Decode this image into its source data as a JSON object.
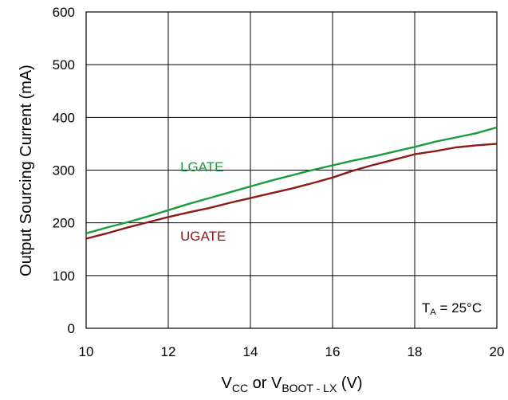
{
  "chart_data": {
    "type": "line",
    "title": "",
    "xlabel": {
      "main": "V",
      "sub1": "CC",
      "mid": " or V",
      "sub2": "BOOT - LX",
      "tail": " (V)"
    },
    "ylabel": "Output Sourcing Current (mA)",
    "xlim": [
      10,
      20
    ],
    "ylim": [
      0,
      600
    ],
    "xticks": [
      "10",
      "12",
      "14",
      "16",
      "18",
      "20"
    ],
    "yticks": [
      "0",
      "100",
      "200",
      "300",
      "400",
      "500",
      "600"
    ],
    "grid": true,
    "annotation": {
      "prefix": "T",
      "sub": "A",
      "suffix": " = 25°C"
    },
    "series": [
      {
        "name": "LGATE",
        "color": "#1a9c3e",
        "x": [
          10,
          10.5,
          11,
          11.5,
          12,
          12.5,
          13,
          13.5,
          14,
          14.5,
          15,
          15.5,
          16,
          16.5,
          17,
          17.5,
          18,
          18.5,
          19,
          19.5,
          20
        ],
        "y": [
          180,
          191,
          201,
          212,
          224,
          236,
          247,
          258,
          269,
          280,
          290,
          300,
          309,
          318,
          326,
          335,
          344,
          354,
          362,
          370,
          381
        ]
      },
      {
        "name": "UGATE",
        "color": "#8b1a1a",
        "x": [
          10,
          10.5,
          11,
          11.5,
          12,
          12.5,
          13,
          13.5,
          14,
          14.5,
          15,
          15.5,
          16,
          16.5,
          17,
          17.5,
          18,
          18.5,
          19,
          19.5,
          20
        ],
        "y": [
          170,
          180,
          191,
          201,
          211,
          220,
          228,
          238,
          247,
          256,
          265,
          275,
          286,
          299,
          310,
          320,
          330,
          336,
          343,
          347,
          350
        ]
      }
    ]
  }
}
